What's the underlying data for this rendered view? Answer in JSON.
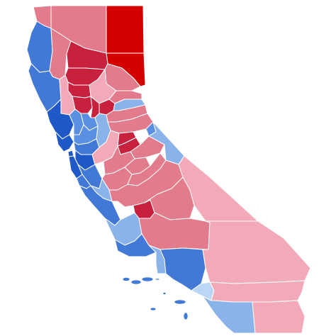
{
  "map": {
    "colors": {
      "r_strongest": "#d40000",
      "r_strong": "#c8213d",
      "r_medium": "#e27b8c",
      "r_light": "#f2aab8",
      "d_light": "#8ab3ea",
      "d_medium": "#5a8fe1",
      "d_strong": "#4279d6",
      "d_strongest": "#1f58c7",
      "d_pale": "#bcd6f5"
    },
    "counties": [
      {
        "id": "modoc",
        "shade": "r_strongest"
      },
      {
        "id": "lassen",
        "shade": "r_strongest"
      },
      {
        "id": "siskiyou",
        "shade": "r_medium"
      },
      {
        "id": "del-norte",
        "shade": "r_medium"
      },
      {
        "id": "humboldt",
        "shade": "d_strong"
      },
      {
        "id": "trinity",
        "shade": "r_medium"
      },
      {
        "id": "shasta",
        "shade": "r_strong"
      },
      {
        "id": "tehama",
        "shade": "r_strong"
      },
      {
        "id": "plumas",
        "shade": "r_medium"
      },
      {
        "id": "butte",
        "shade": "r_light"
      },
      {
        "id": "glenn",
        "shade": "r_strong"
      },
      {
        "id": "mendocino",
        "shade": "d_strong"
      },
      {
        "id": "lake",
        "shade": "r_light"
      },
      {
        "id": "colusa",
        "shade": "r_strong"
      },
      {
        "id": "sutter",
        "shade": "r_strong"
      },
      {
        "id": "yuba",
        "shade": "r_strong"
      },
      {
        "id": "sierra",
        "shade": "r_medium"
      },
      {
        "id": "nevada",
        "shade": "d_light"
      },
      {
        "id": "placer",
        "shade": "r_medium"
      },
      {
        "id": "el-dorado",
        "shade": "r_medium"
      },
      {
        "id": "alpine",
        "shade": "d_medium"
      },
      {
        "id": "sonoma",
        "shade": "d_strongest"
      },
      {
        "id": "napa",
        "shade": "d_medium"
      },
      {
        "id": "yolo",
        "shade": "d_medium"
      },
      {
        "id": "sacramento",
        "shade": "d_light"
      },
      {
        "id": "marin",
        "shade": "d_strongest"
      },
      {
        "id": "solano",
        "shade": "d_medium"
      },
      {
        "id": "contra-costa",
        "shade": "d_strong"
      },
      {
        "id": "san-francisco",
        "shade": "d_strongest"
      },
      {
        "id": "alameda",
        "shade": "d_strongest"
      },
      {
        "id": "san-mateo",
        "shade": "d_strongest"
      },
      {
        "id": "santa-clara",
        "shade": "d_strong"
      },
      {
        "id": "santa-cruz",
        "shade": "d_strong"
      },
      {
        "id": "san-joaquin",
        "shade": "r_light"
      },
      {
        "id": "amador",
        "shade": "r_strong"
      },
      {
        "id": "calaveras",
        "shade": "r_strong"
      },
      {
        "id": "tuolumne",
        "shade": "r_medium"
      },
      {
        "id": "mono",
        "shade": "d_light"
      },
      {
        "id": "stanislaus",
        "shade": "r_medium"
      },
      {
        "id": "mariposa",
        "shade": "r_medium"
      },
      {
        "id": "merced",
        "shade": "r_medium"
      },
      {
        "id": "madera",
        "shade": "r_medium"
      },
      {
        "id": "san-benito",
        "shade": "d_light"
      },
      {
        "id": "monterey",
        "shade": "d_strong"
      },
      {
        "id": "fresno",
        "shade": "r_medium"
      },
      {
        "id": "kings",
        "shade": "r_strong"
      },
      {
        "id": "tulare",
        "shade": "r_medium"
      },
      {
        "id": "inyo",
        "shade": "r_light"
      },
      {
        "id": "san-luis-obispo",
        "shade": "d_light"
      },
      {
        "id": "kern",
        "shade": "r_medium"
      },
      {
        "id": "santa-barbara",
        "shade": "d_strong"
      },
      {
        "id": "ventura",
        "shade": "d_light"
      },
      {
        "id": "los-angeles",
        "shade": "d_strong"
      },
      {
        "id": "san-bernardino",
        "shade": "r_light"
      },
      {
        "id": "orange",
        "shade": "d_pale"
      },
      {
        "id": "riverside",
        "shade": "r_light"
      },
      {
        "id": "san-diego",
        "shade": "d_light"
      },
      {
        "id": "imperial",
        "shade": "r_light"
      }
    ]
  }
}
